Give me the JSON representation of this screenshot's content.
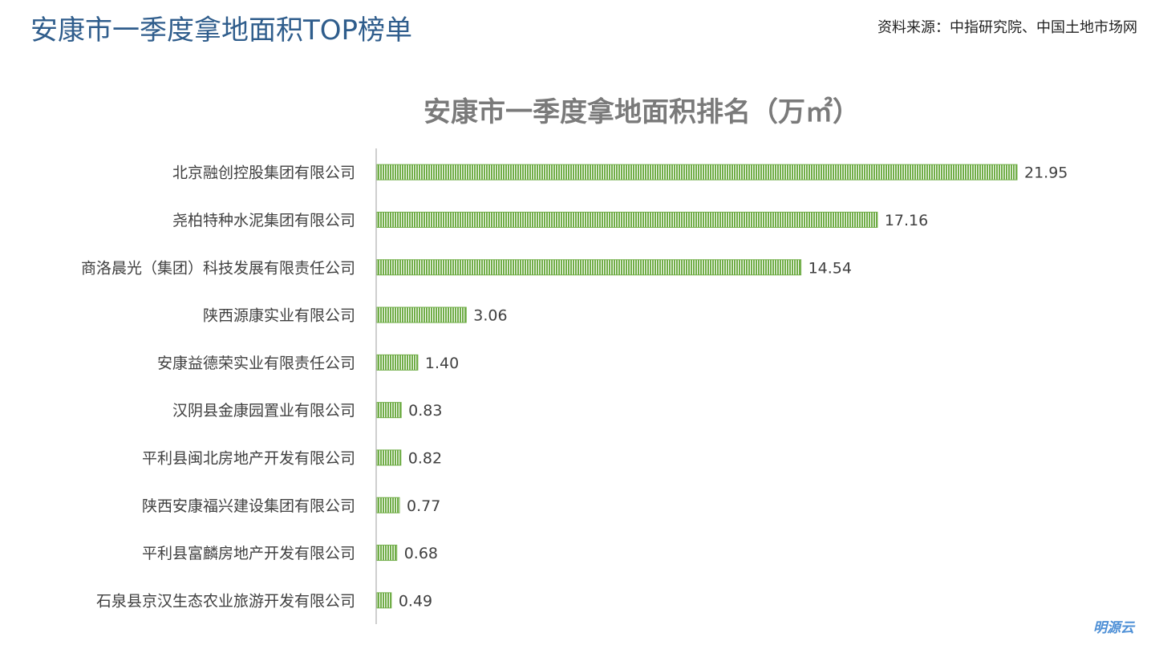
{
  "header": {
    "title": "安康市一季度拿地面积TOP榜单",
    "source": "资料来源：中指研究院、中国土地市场网"
  },
  "watermark": "明源云",
  "colors": {
    "bar": "#70ad47",
    "bar_stripe": "#ffffff",
    "axis": "#bfbfbf",
    "label": "#404040",
    "title": "#7a7a7a",
    "header": "#2f5d8c"
  },
  "chart_data": {
    "type": "bar",
    "orientation": "horizontal",
    "title": "安康市一季度拿地面积排名（万㎡）",
    "categories": [
      "北京融创控股集团有限公司",
      "尧柏特种水泥集团有限公司",
      "商洛晨光（集团）科技发展有限责任公司",
      "陕西源康实业有限公司",
      "安康益德荣实业有限责任公司",
      "汉阴县金康园置业有限公司",
      "平利县闽北房地产开发有限公司",
      "陕西安康福兴建设集团有限公司",
      "平利县富麟房地产开发有限公司",
      "石泉县京汉生态农业旅游开发有限公司"
    ],
    "values": [
      21.95,
      17.16,
      14.54,
      3.06,
      1.4,
      0.83,
      0.82,
      0.77,
      0.68,
      0.49
    ],
    "value_labels": [
      "21.95",
      "17.16",
      "14.54",
      "3.06",
      "1.40",
      "0.83",
      "0.82",
      "0.77",
      "0.68",
      "0.49"
    ],
    "xlim": [
      0,
      21.95
    ],
    "grid": false,
    "legend": "none"
  }
}
